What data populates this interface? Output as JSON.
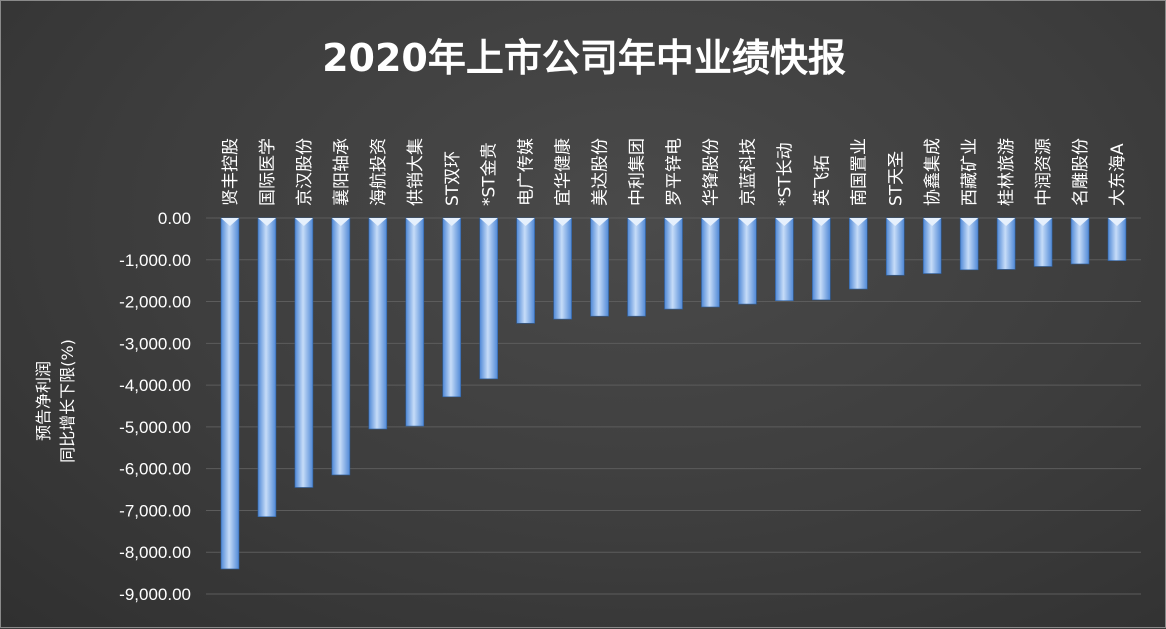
{
  "chart_data": {
    "type": "bar",
    "title": "2020年上市公司年中业绩快报",
    "ylabel_lines": [
      "预告净利润",
      "同比增长下限(%)"
    ],
    "categories": [
      "贤丰控股",
      "国际医学",
      "京汉股份",
      "襄阳轴承",
      "海航投资",
      "供销大集",
      "ST双环",
      "*ST金贵",
      "电广传媒",
      "宜华健康",
      "美达股份",
      "中利集团",
      "罗平锌电",
      "华锋股份",
      "京蓝科技",
      "*ST长动",
      "英飞拓",
      "南国置业",
      "ST天圣",
      "协鑫集成",
      "西藏矿业",
      "桂林旅游",
      "中润资源",
      "名雕股份",
      "大东海A"
    ],
    "values": [
      -8400,
      -7150,
      -6450,
      -6150,
      -5050,
      -4980,
      -4280,
      -3850,
      -2520,
      -2420,
      -2350,
      -2350,
      -2180,
      -2130,
      -2060,
      -1980,
      -1960,
      -1700,
      -1370,
      -1330,
      -1240,
      -1230,
      -1160,
      -1100,
      -1020
    ],
    "ylim": [
      -9000,
      0
    ],
    "yticks": [
      "0.00",
      "-1,000.00",
      "-2,000.00",
      "-3,000.00",
      "-4,000.00",
      "-5,000.00",
      "-6,000.00",
      "-7,000.00",
      "-8,000.00",
      "-9,000.00"
    ],
    "grid": true,
    "colors": {
      "bar_light": "#c6dcf8",
      "bar_dark": "#4f88d6",
      "grid": "#5c5c5c",
      "text": "#ffffff"
    }
  }
}
